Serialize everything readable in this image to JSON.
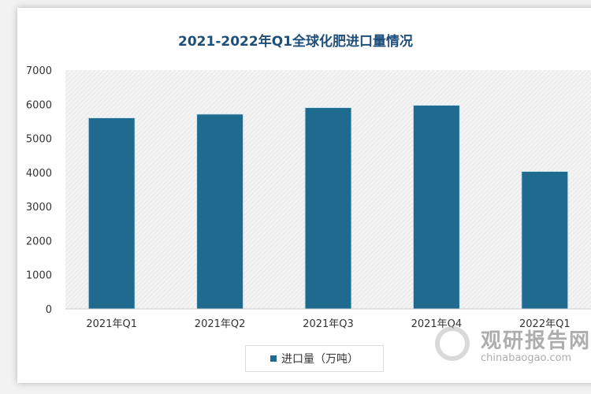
{
  "chart_data": {
    "type": "bar",
    "title": "2021-2022年Q1全球化肥进口量情况",
    "categories": [
      "2021年Q1",
      "2021年Q2",
      "2021年Q3",
      "2021年Q4",
      "2022年Q1"
    ],
    "series": [
      {
        "name": "进口量（万吨）",
        "values": [
          5590,
          5700,
          5890,
          5960,
          4020
        ]
      }
    ],
    "ylim": [
      0,
      7000
    ],
    "yticks": [
      "0",
      "1000",
      "2000",
      "3000",
      "4000",
      "5000",
      "6000",
      "7000"
    ],
    "grid": false,
    "legend": "bottom",
    "colors": {
      "bar": "#1f6a8f",
      "title": "#1f4e79"
    }
  },
  "watermark": {
    "cn": "观研报告网",
    "en": "chinabaogao.com"
  }
}
